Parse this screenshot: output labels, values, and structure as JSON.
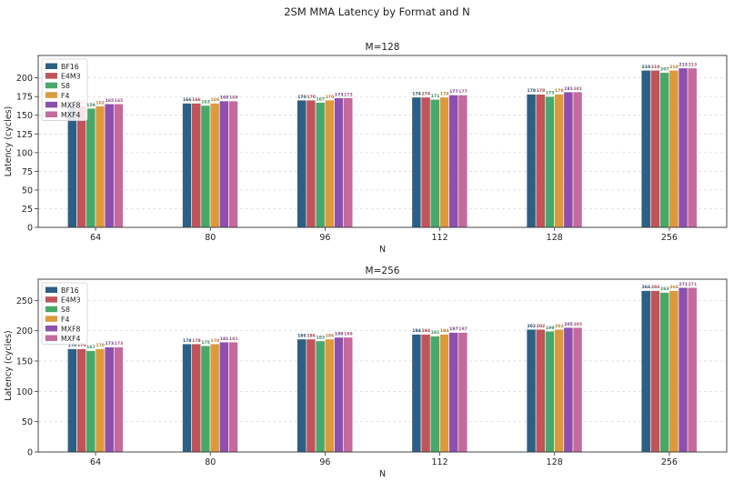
{
  "figure": {
    "suptitle": "2SM MMA Latency by Format and N"
  },
  "colors": {
    "BF16": "#2b5f86",
    "E4M3": "#c1545a",
    "S8": "#47a86a",
    "F4": "#dd9a3b",
    "MXF8": "#8e4fae",
    "MXF4": "#c46a9c"
  },
  "chart_data": [
    {
      "type": "bar",
      "title": "M=128",
      "xlabel": "N",
      "ylabel": "Latency (cycles)",
      "categories": [
        "64",
        "80",
        "96",
        "112",
        "128",
        "256"
      ],
      "ylim": [
        0,
        230
      ],
      "yticks": [
        0,
        25,
        50,
        75,
        100,
        125,
        150,
        175,
        200
      ],
      "grid": "horizontal-dashed",
      "legend_position": "top-left",
      "series": [
        {
          "name": "BF16",
          "values": [
            162,
            166,
            170,
            174,
            178,
            210
          ]
        },
        {
          "name": "E4M3",
          "values": [
            162,
            166,
            170,
            174,
            178,
            210
          ]
        },
        {
          "name": "S8",
          "values": [
            159,
            163,
            167,
            171,
            175,
            207
          ]
        },
        {
          "name": "F4",
          "values": [
            162,
            166,
            170,
            174,
            178,
            210
          ]
        },
        {
          "name": "MXF8",
          "values": [
            165,
            169,
            173,
            177,
            181,
            213
          ]
        },
        {
          "name": "MXF4",
          "values": [
            165,
            169,
            173,
            177,
            181,
            213
          ]
        }
      ]
    },
    {
      "type": "bar",
      "title": "M=256",
      "xlabel": "N",
      "ylabel": "Latency (cycles)",
      "categories": [
        "64",
        "80",
        "96",
        "112",
        "128",
        "256"
      ],
      "ylim": [
        0,
        285
      ],
      "yticks": [
        0,
        50,
        100,
        150,
        200,
        250
      ],
      "grid": "horizontal-dashed",
      "legend_position": "top-left",
      "series": [
        {
          "name": "BF16",
          "values": [
            170,
            178,
            186,
            194,
            202,
            266
          ]
        },
        {
          "name": "E4M3",
          "values": [
            170,
            178,
            186,
            194,
            202,
            266
          ]
        },
        {
          "name": "S8",
          "values": [
            167,
            175,
            183,
            191,
            199,
            263
          ]
        },
        {
          "name": "F4",
          "values": [
            170,
            178,
            186,
            194,
            202,
            266
          ]
        },
        {
          "name": "MXF8",
          "values": [
            173,
            181,
            189,
            197,
            205,
            271
          ]
        },
        {
          "name": "MXF4",
          "values": [
            173,
            181,
            189,
            197,
            205,
            271
          ]
        }
      ]
    }
  ]
}
